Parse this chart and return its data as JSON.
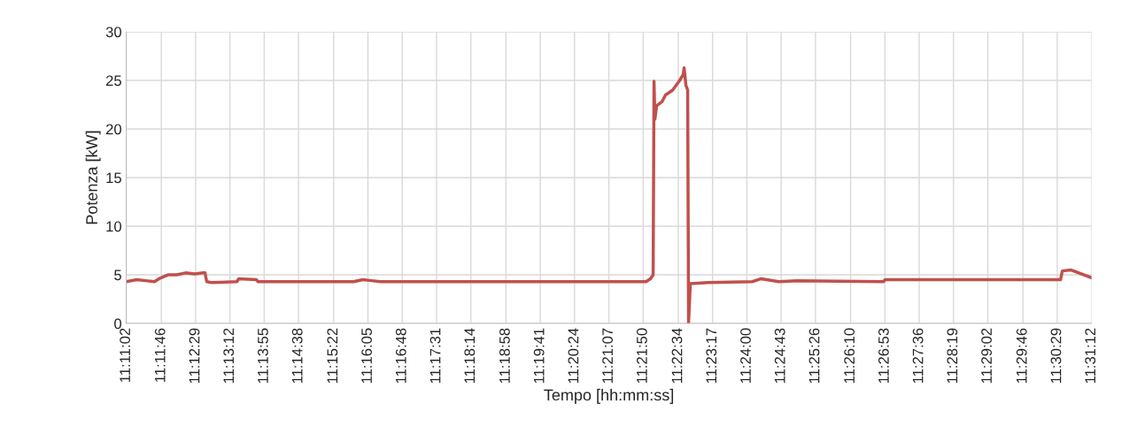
{
  "chart_data": {
    "type": "line",
    "xlabel": "Tempo [hh:mm:ss]",
    "ylabel": "Potenza [kW]",
    "grid": true,
    "marker": "none",
    "line_style": "solid",
    "x": [
      11.18389,
      11.18758,
      11.19067,
      11.19375,
      11.19531,
      11.19839,
      11.20147,
      11.20456,
      11.20764,
      11.21072,
      11.21133,
      11.21194,
      11.21381,
      11.22244,
      11.22306,
      11.22922,
      11.22983,
      11.26314,
      11.26622,
      11.26931,
      11.27239,
      11.36489,
      11.36644,
      11.36736,
      11.36767,
      11.36797,
      11.36858,
      11.37044,
      11.37167,
      11.37414,
      11.37661,
      11.37783,
      11.37814,
      11.37878,
      11.37939,
      11.37969,
      11.38031,
      11.38647,
      11.40189,
      11.40497,
      11.41114,
      11.41731,
      11.44753,
      11.44817,
      11.50922,
      11.50983,
      11.51292,
      11.52
    ],
    "series": [
      {
        "color": "#c0504d",
        "values": [
          4.3,
          4.5,
          4.4,
          4.3,
          4.6,
          5.0,
          5.0,
          5.2,
          5.1,
          5.2,
          5.2,
          4.3,
          4.2,
          4.3,
          4.6,
          4.5,
          4.3,
          4.3,
          4.5,
          4.4,
          4.3,
          4.3,
          4.6,
          5.0,
          24.9,
          21.0,
          22.4,
          22.8,
          23.5,
          24.0,
          25.0,
          25.6,
          26.3,
          24.5,
          24.0,
          0,
          4.1,
          4.2,
          4.3,
          4.6,
          4.3,
          4.4,
          4.3,
          4.5,
          4.5,
          5.4,
          5.5,
          4.7
        ]
      }
    ],
    "ylim": [
      0,
      30
    ],
    "yticks": [
      0,
      5,
      10,
      15,
      20,
      25,
      30
    ],
    "xlim": [
      11.18389,
      11.52
    ],
    "xticks": [
      {
        "value": 11.18389,
        "label": "11:11:02"
      },
      {
        "value": 11.19611,
        "label": "11:11:46"
      },
      {
        "value": 11.20806,
        "label": "11:12:29"
      },
      {
        "value": 11.22,
        "label": "11:13:12"
      },
      {
        "value": 11.23194,
        "label": "11:13:55"
      },
      {
        "value": 11.24389,
        "label": "11:14:38"
      },
      {
        "value": 11.25611,
        "label": "11:15:22"
      },
      {
        "value": 11.26806,
        "label": "11:16:05"
      },
      {
        "value": 11.28,
        "label": "11:16:48"
      },
      {
        "value": 11.29194,
        "label": "11:17:31"
      },
      {
        "value": 11.30389,
        "label": "11:18:14"
      },
      {
        "value": 11.31611,
        "label": "11:18:58"
      },
      {
        "value": 11.32806,
        "label": "11:19:41"
      },
      {
        "value": 11.34,
        "label": "11:20:24"
      },
      {
        "value": 11.35194,
        "label": "11:21:07"
      },
      {
        "value": 11.36389,
        "label": "11:21:50"
      },
      {
        "value": 11.37611,
        "label": "11:22:34"
      },
      {
        "value": 11.38806,
        "label": "11:23:17"
      },
      {
        "value": 11.4,
        "label": "11:24:00"
      },
      {
        "value": 11.41194,
        "label": "11:24:43"
      },
      {
        "value": 11.42389,
        "label": "11:25:26"
      },
      {
        "value": 11.43611,
        "label": "11:26:10"
      },
      {
        "value": 11.44806,
        "label": "11:26:53"
      },
      {
        "value": 11.46,
        "label": "11:27:36"
      },
      {
        "value": 11.47194,
        "label": "11:28:19"
      },
      {
        "value": 11.48389,
        "label": "11:29:02"
      },
      {
        "value": 11.49611,
        "label": "11:29:46"
      },
      {
        "value": 11.50806,
        "label": "11:30:29"
      },
      {
        "value": 11.52,
        "label": "11:31:12"
      }
    ]
  }
}
